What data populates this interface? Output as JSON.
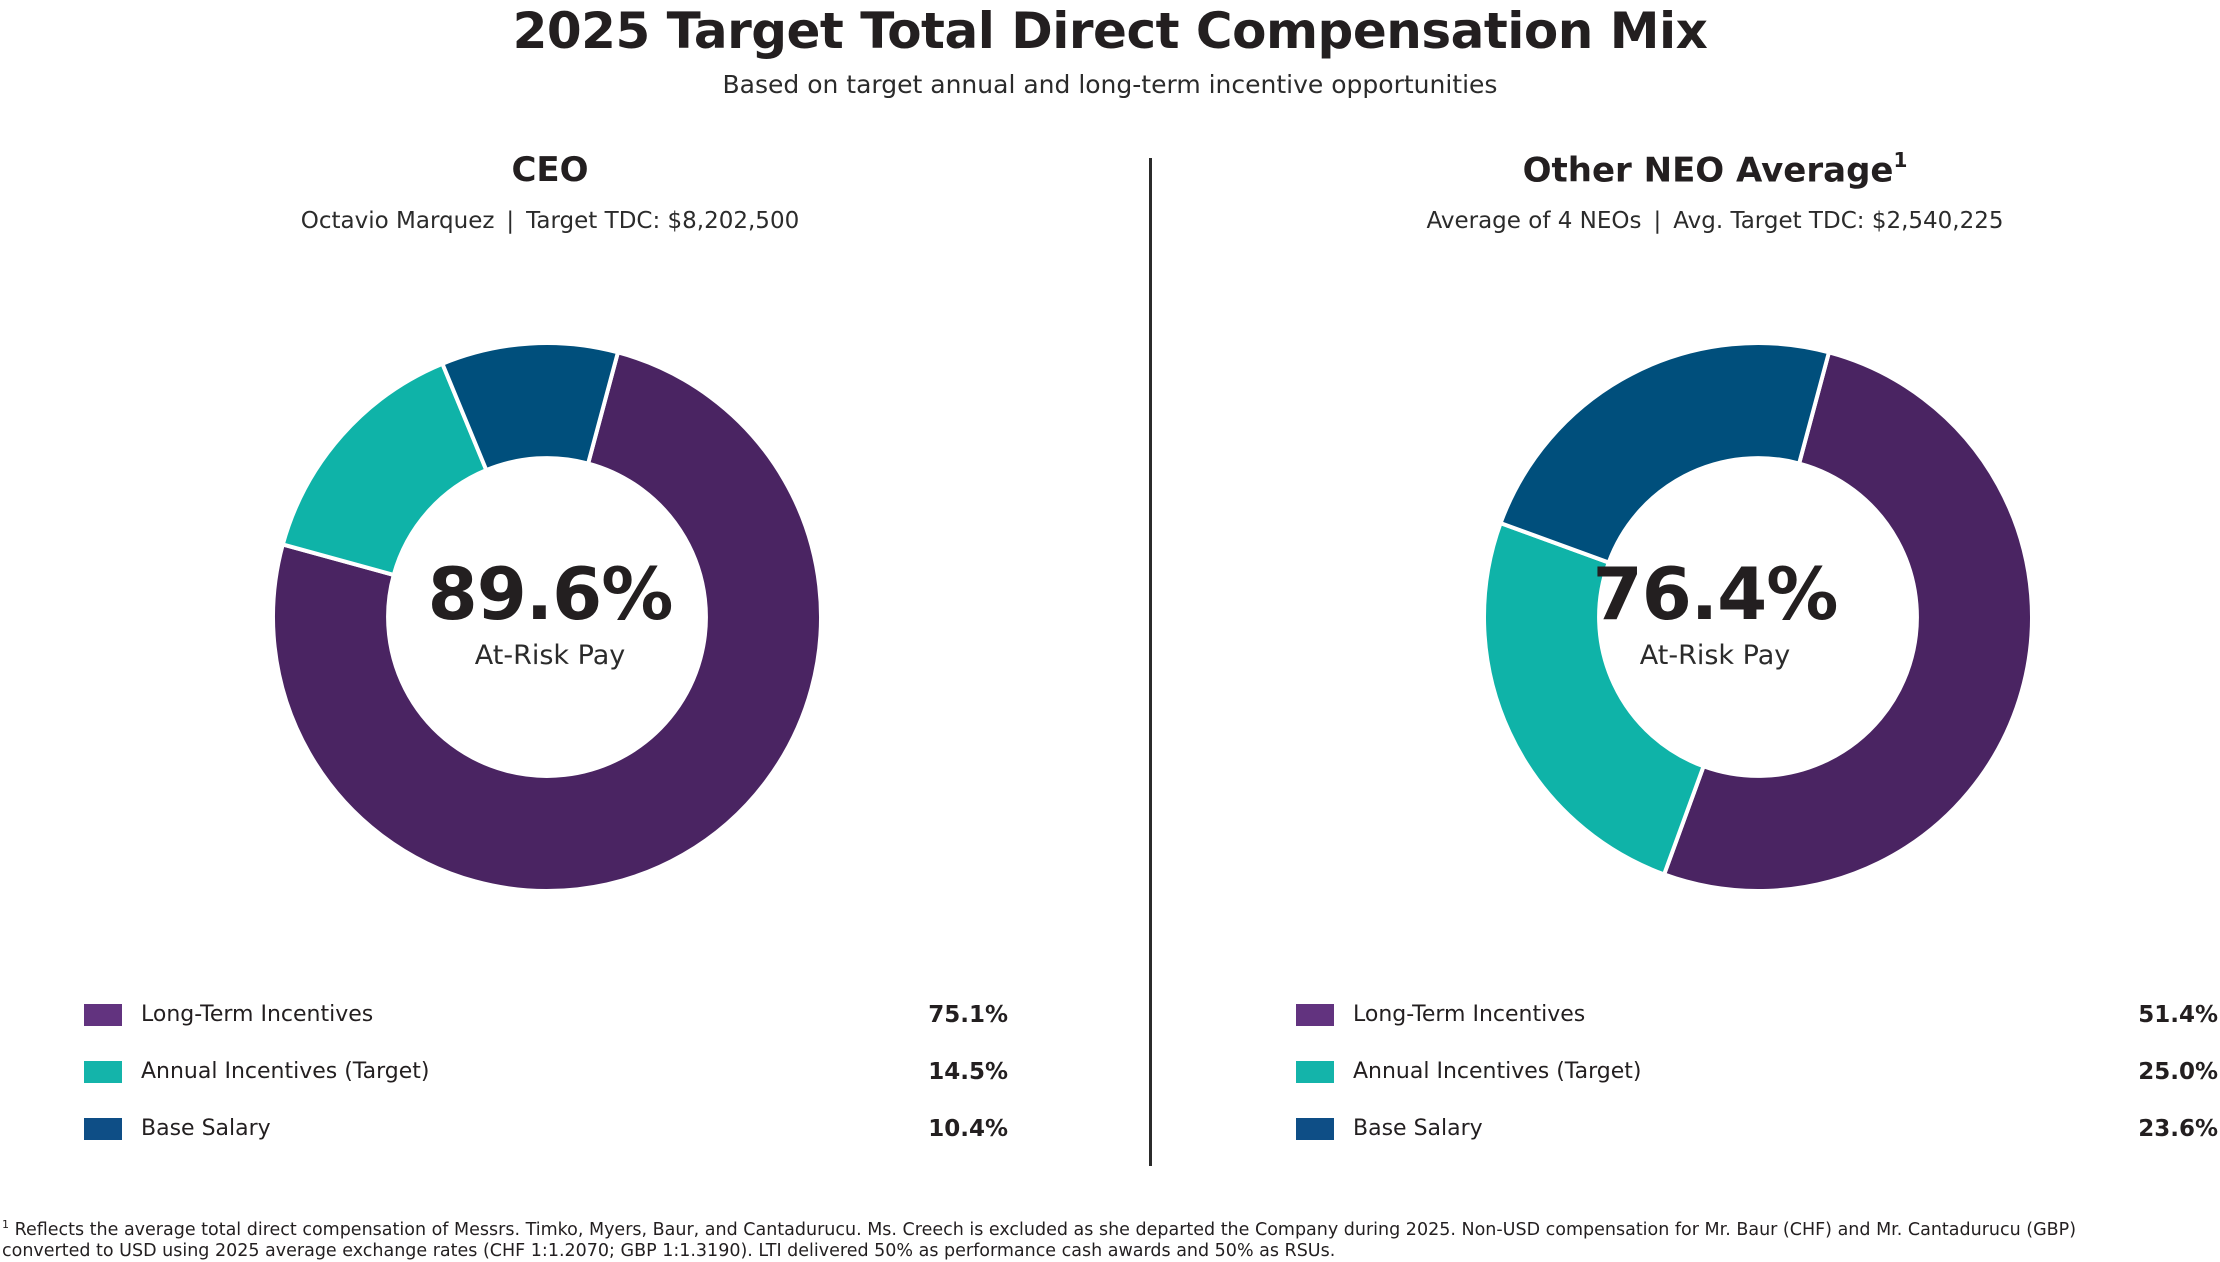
{
  "title": "2025 Target Total Direct Compensation Mix",
  "subtitle": "Based on target annual and long-term incentive opportunities",
  "colors": {
    "long_term": "#4a2462",
    "annual": "#0fb3a8",
    "base": "#004f7c",
    "legend_long_term": "#62337f",
    "legend_annual": "#14b4aa",
    "legend_base": "#0e4e86"
  },
  "chart_data": [
    {
      "type": "pie",
      "title": "CEO",
      "subtitle_name": "Octavio Marquez",
      "subtitle_separator": "|",
      "subtitle_tdc": "Target TDC: $8,202,500",
      "center_value": "89.6%",
      "center_label": "At-Risk Pay",
      "categories": [
        "Long-Term Incentives",
        "Annual Incentives (Target)",
        "Base Salary"
      ],
      "values": [
        75.1,
        14.5,
        10.4
      ],
      "value_labels": [
        "75.1%",
        "14.5%",
        "10.4%"
      ],
      "hole": 0.58
    },
    {
      "type": "pie",
      "title": "Other NEO Average",
      "title_superscript": "1",
      "subtitle_name": "Average of 4 NEOs",
      "subtitle_separator": "|",
      "subtitle_tdc": "Avg. Target TDC: $2,540,225",
      "center_value": "76.4%",
      "center_label": "At-Risk Pay",
      "categories": [
        "Long-Term Incentives",
        "Annual Incentives (Target)",
        "Base Salary"
      ],
      "values": [
        51.4,
        25.0,
        23.6
      ],
      "value_labels": [
        "51.4%",
        "25.0%",
        "23.6%"
      ],
      "hole": 0.58
    }
  ],
  "footnote": {
    "marker": "1",
    "line1": "Reflects the average total direct compensation of Messrs. Timko, Myers, Baur, and Cantadurucu. Ms. Creech is excluded as she departed the Company during 2025. Non-USD compensation for Mr. Baur (CHF) and Mr. Cantadurucu (GBP)",
    "line2": "converted to USD using 2025 average exchange rates (CHF 1:1.2070; GBP 1:1.3190). LTI delivered 50% as performance cash awards and 50% as RSUs."
  }
}
